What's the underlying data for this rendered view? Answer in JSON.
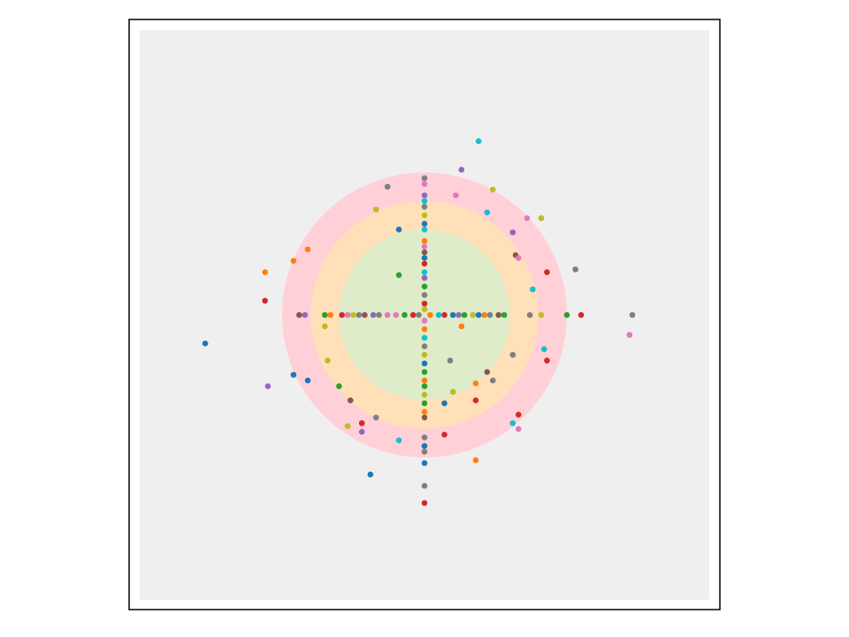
{
  "chart_data": {
    "type": "scatter",
    "title": "",
    "xlabel": "",
    "ylabel": "",
    "xlim": [
      -1.0,
      1.0
    ],
    "ylim": [
      -1.0,
      1.0
    ],
    "axes_frame": true,
    "ticks": false,
    "grid": false,
    "legend": "none",
    "background_color": "#efefef",
    "rings": [
      {
        "radius": 0.5,
        "color": "#ffd0d8"
      },
      {
        "radius": 0.4,
        "color": "#ffe0b8"
      },
      {
        "radius": 0.3,
        "color": "#dfecca"
      }
    ],
    "palette": {
      "blue": "#1f77b4",
      "orange": "#ff7f0e",
      "green": "#2ca02c",
      "red": "#d62728",
      "purple": "#9467bd",
      "brown": "#8c564b",
      "pink": "#e377c2",
      "gray": "#7f7f7f",
      "olive": "#bcbd22",
      "cyan": "#17becf"
    },
    "points": [
      {
        "x": 0.19,
        "y": 0.61,
        "c": "cyan"
      },
      {
        "x": 0.13,
        "y": 0.51,
        "c": "purple"
      },
      {
        "x": -0.13,
        "y": 0.45,
        "c": "gray"
      },
      {
        "x": 0.11,
        "y": 0.42,
        "c": "pink"
      },
      {
        "x": 0.24,
        "y": 0.44,
        "c": "olive"
      },
      {
        "x": -0.17,
        "y": 0.37,
        "c": "olive"
      },
      {
        "x": 0.22,
        "y": 0.36,
        "c": "cyan"
      },
      {
        "x": 0.36,
        "y": 0.34,
        "c": "pink"
      },
      {
        "x": 0.41,
        "y": 0.34,
        "c": "olive"
      },
      {
        "x": -0.09,
        "y": 0.3,
        "c": "blue"
      },
      {
        "x": 0.31,
        "y": 0.29,
        "c": "purple"
      },
      {
        "x": -0.41,
        "y": 0.23,
        "c": "orange"
      },
      {
        "x": 0.32,
        "y": 0.21,
        "c": "brown"
      },
      {
        "x": 0.33,
        "y": 0.2,
        "c": "pink"
      },
      {
        "x": -0.46,
        "y": 0.19,
        "c": "orange"
      },
      {
        "x": 0.53,
        "y": 0.16,
        "c": "gray"
      },
      {
        "x": -0.56,
        "y": 0.15,
        "c": "orange"
      },
      {
        "x": 0.43,
        "y": 0.15,
        "c": "red"
      },
      {
        "x": -0.09,
        "y": 0.14,
        "c": "green"
      },
      {
        "x": 0.38,
        "y": 0.09,
        "c": "cyan"
      },
      {
        "x": -0.56,
        "y": 0.05,
        "c": "red"
      },
      {
        "x": -0.35,
        "y": -0.04,
        "c": "olive"
      },
      {
        "x": 0.13,
        "y": -0.04,
        "c": "orange"
      },
      {
        "x": -0.77,
        "y": -0.1,
        "c": "blue"
      },
      {
        "x": 0.72,
        "y": -0.07,
        "c": "pink"
      },
      {
        "x": 0.73,
        "y": 0.0,
        "c": "gray"
      },
      {
        "x": 0.55,
        "y": 0.0,
        "c": "red"
      },
      {
        "x": 0.5,
        "y": 0.0,
        "c": "green"
      },
      {
        "x": 0.41,
        "y": 0.0,
        "c": "olive"
      },
      {
        "x": 0.37,
        "y": 0.0,
        "c": "gray"
      },
      {
        "x": -0.44,
        "y": 0.0,
        "c": "brown"
      },
      {
        "x": -0.42,
        "y": 0.0,
        "c": "purple"
      },
      {
        "x": 0.42,
        "y": -0.12,
        "c": "cyan"
      },
      {
        "x": 0.43,
        "y": -0.16,
        "c": "red"
      },
      {
        "x": 0.31,
        "y": -0.14,
        "c": "gray"
      },
      {
        "x": -0.34,
        "y": -0.16,
        "c": "olive"
      },
      {
        "x": 0.09,
        "y": -0.16,
        "c": "gray"
      },
      {
        "x": 0.22,
        "y": -0.2,
        "c": "brown"
      },
      {
        "x": 0.24,
        "y": -0.23,
        "c": "gray"
      },
      {
        "x": 0.18,
        "y": -0.24,
        "c": "orange"
      },
      {
        "x": -0.46,
        "y": -0.21,
        "c": "blue"
      },
      {
        "x": -0.41,
        "y": -0.23,
        "c": "blue"
      },
      {
        "x": -0.55,
        "y": -0.25,
        "c": "purple"
      },
      {
        "x": -0.3,
        "y": -0.25,
        "c": "green"
      },
      {
        "x": 0.1,
        "y": -0.27,
        "c": "olive"
      },
      {
        "x": 0.18,
        "y": -0.3,
        "c": "red"
      },
      {
        "x": -0.26,
        "y": -0.3,
        "c": "brown"
      },
      {
        "x": 0.07,
        "y": -0.31,
        "c": "blue"
      },
      {
        "x": -0.17,
        "y": -0.36,
        "c": "gray"
      },
      {
        "x": 0.33,
        "y": -0.35,
        "c": "red"
      },
      {
        "x": 0.31,
        "y": -0.38,
        "c": "cyan"
      },
      {
        "x": -0.22,
        "y": -0.38,
        "c": "red"
      },
      {
        "x": -0.27,
        "y": -0.39,
        "c": "olive"
      },
      {
        "x": 0.33,
        "y": -0.4,
        "c": "pink"
      },
      {
        "x": -0.22,
        "y": -0.41,
        "c": "purple"
      },
      {
        "x": 0.07,
        "y": -0.42,
        "c": "red"
      },
      {
        "x": -0.09,
        "y": -0.44,
        "c": "cyan"
      },
      {
        "x": 0.18,
        "y": -0.51,
        "c": "orange"
      },
      {
        "x": -0.19,
        "y": -0.56,
        "c": "blue"
      },
      {
        "x": 0.0,
        "y": 0.48,
        "c": "gray"
      },
      {
        "x": 0.0,
        "y": 0.46,
        "c": "pink"
      },
      {
        "x": 0.0,
        "y": 0.42,
        "c": "purple"
      },
      {
        "x": 0.0,
        "y": 0.4,
        "c": "cyan"
      },
      {
        "x": 0.0,
        "y": 0.38,
        "c": "gray"
      },
      {
        "x": 0.0,
        "y": 0.35,
        "c": "olive"
      },
      {
        "x": 0.0,
        "y": 0.32,
        "c": "blue"
      },
      {
        "x": 0.0,
        "y": 0.3,
        "c": "cyan"
      },
      {
        "x": 0.0,
        "y": 0.26,
        "c": "orange"
      },
      {
        "x": 0.0,
        "y": 0.24,
        "c": "pink"
      },
      {
        "x": 0.0,
        "y": 0.22,
        "c": "brown"
      },
      {
        "x": 0.0,
        "y": 0.2,
        "c": "blue"
      },
      {
        "x": 0.0,
        "y": 0.18,
        "c": "red"
      },
      {
        "x": 0.0,
        "y": 0.15,
        "c": "cyan"
      },
      {
        "x": 0.0,
        "y": 0.13,
        "c": "purple"
      },
      {
        "x": 0.0,
        "y": 0.1,
        "c": "green"
      },
      {
        "x": 0.0,
        "y": 0.07,
        "c": "gray"
      },
      {
        "x": 0.0,
        "y": 0.04,
        "c": "red"
      },
      {
        "x": 0.0,
        "y": 0.02,
        "c": "olive"
      },
      {
        "x": 0.0,
        "y": -0.02,
        "c": "pink"
      },
      {
        "x": 0.0,
        "y": -0.05,
        "c": "orange"
      },
      {
        "x": 0.0,
        "y": -0.08,
        "c": "cyan"
      },
      {
        "x": 0.0,
        "y": -0.11,
        "c": "gray"
      },
      {
        "x": 0.0,
        "y": -0.14,
        "c": "olive"
      },
      {
        "x": 0.0,
        "y": -0.17,
        "c": "blue"
      },
      {
        "x": 0.0,
        "y": -0.2,
        "c": "green"
      },
      {
        "x": 0.0,
        "y": -0.23,
        "c": "orange"
      },
      {
        "x": 0.0,
        "y": -0.25,
        "c": "green"
      },
      {
        "x": 0.0,
        "y": -0.28,
        "c": "olive"
      },
      {
        "x": 0.0,
        "y": -0.31,
        "c": "green"
      },
      {
        "x": 0.0,
        "y": -0.34,
        "c": "orange"
      },
      {
        "x": 0.0,
        "y": -0.36,
        "c": "brown"
      },
      {
        "x": 0.0,
        "y": -0.43,
        "c": "gray"
      },
      {
        "x": 0.0,
        "y": -0.46,
        "c": "blue"
      },
      {
        "x": 0.0,
        "y": -0.48,
        "c": "gray"
      },
      {
        "x": 0.0,
        "y": -0.52,
        "c": "blue"
      },
      {
        "x": 0.0,
        "y": -0.6,
        "c": "gray"
      },
      {
        "x": 0.0,
        "y": -0.66,
        "c": "red"
      },
      {
        "x": -0.35,
        "y": 0.0,
        "c": "green"
      },
      {
        "x": -0.33,
        "y": 0.0,
        "c": "orange"
      },
      {
        "x": -0.29,
        "y": 0.0,
        "c": "red"
      },
      {
        "x": -0.27,
        "y": 0.0,
        "c": "pink"
      },
      {
        "x": -0.25,
        "y": 0.0,
        "c": "olive"
      },
      {
        "x": -0.23,
        "y": 0.0,
        "c": "gray"
      },
      {
        "x": -0.21,
        "y": 0.0,
        "c": "brown"
      },
      {
        "x": -0.18,
        "y": 0.0,
        "c": "purple"
      },
      {
        "x": -0.16,
        "y": 0.0,
        "c": "gray"
      },
      {
        "x": -0.13,
        "y": 0.0,
        "c": "pink"
      },
      {
        "x": -0.1,
        "y": 0.0,
        "c": "pink"
      },
      {
        "x": -0.07,
        "y": 0.0,
        "c": "green"
      },
      {
        "x": -0.04,
        "y": 0.0,
        "c": "red"
      },
      {
        "x": -0.02,
        "y": 0.0,
        "c": "gray"
      },
      {
        "x": 0.02,
        "y": 0.0,
        "c": "orange"
      },
      {
        "x": 0.05,
        "y": 0.0,
        "c": "cyan"
      },
      {
        "x": 0.07,
        "y": 0.0,
        "c": "red"
      },
      {
        "x": 0.1,
        "y": 0.0,
        "c": "blue"
      },
      {
        "x": 0.12,
        "y": 0.0,
        "c": "purple"
      },
      {
        "x": 0.14,
        "y": 0.0,
        "c": "green"
      },
      {
        "x": 0.17,
        "y": 0.0,
        "c": "olive"
      },
      {
        "x": 0.19,
        "y": 0.0,
        "c": "blue"
      },
      {
        "x": 0.21,
        "y": 0.0,
        "c": "orange"
      },
      {
        "x": 0.23,
        "y": 0.0,
        "c": "gray"
      },
      {
        "x": 0.26,
        "y": 0.0,
        "c": "brown"
      },
      {
        "x": 0.28,
        "y": 0.0,
        "c": "green"
      }
    ]
  }
}
